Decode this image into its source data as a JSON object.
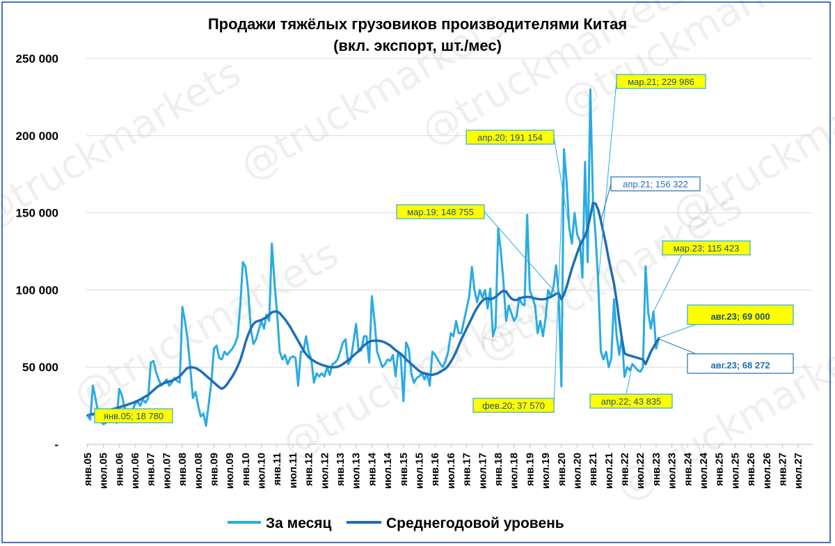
{
  "chart_data": {
    "type": "line",
    "title_line1": "Продажи тяжёлых грузовиков производителями Китая",
    "title_line2": "(вкл. экспорт, шт./мес)",
    "watermark": "@truckmarkets",
    "ylim": [
      0,
      250000
    ],
    "y_ticks": [
      {
        "value": 0,
        "label": "-"
      },
      {
        "value": 50000,
        "label": "50 000"
      },
      {
        "value": 100000,
        "label": "100 000"
      },
      {
        "value": 150000,
        "label": "150 000"
      },
      {
        "value": 200000,
        "label": "200 000"
      },
      {
        "value": 250000,
        "label": "250 000"
      }
    ],
    "x_start": "2005-01",
    "x_end": "2027-12",
    "x_tick_labels": [
      "янв.05",
      "июл.05",
      "янв.06",
      "июл.06",
      "янв.07",
      "июл.07",
      "янв.08",
      "июл.08",
      "янв.09",
      "июл.09",
      "янв.10",
      "июл.10",
      "янв.11",
      "июл.11",
      "янв.12",
      "июл.12",
      "янв.13",
      "июл.13",
      "янв.14",
      "июл.14",
      "янв.15",
      "июл.15",
      "янв.16",
      "июл.16",
      "янв.17",
      "июл.17",
      "янв.18",
      "июл.18",
      "янв.19",
      "июл.19",
      "янв.20",
      "июл.20",
      "янв.21",
      "июл.21",
      "янв.22",
      "июл.22",
      "янв.23",
      "июл.23",
      "янв.24",
      "июл.24",
      "янв.25",
      "июл.25",
      "янв.26",
      "июл.26",
      "янв.27",
      "июл.27"
    ],
    "legend": [
      "За месяц",
      "Среднегодовой уровень"
    ],
    "colors": {
      "monthly": "#29abe2",
      "average": "#1f6eb5",
      "label_fill": "#ffff00",
      "label_text_blue": "#1f6eb5"
    },
    "series": [
      {
        "name": "За месяц",
        "color": "#29abe2",
        "values": [
          18780,
          16000,
          38000,
          30000,
          20000,
          15000,
          13000,
          14000,
          16000,
          20000,
          18000,
          14000,
          36000,
          32000,
          24000,
          22000,
          20000,
          22000,
          26000,
          28000,
          25000,
          29000,
          27000,
          30000,
          53000,
          54000,
          47000,
          42000,
          38000,
          40000,
          42000,
          38000,
          40000,
          43000,
          41000,
          40000,
          89000,
          80000,
          68000,
          50000,
          30000,
          34000,
          25000,
          18000,
          20000,
          12000,
          26000,
          40000,
          62000,
          64000,
          56000,
          55000,
          60000,
          58000,
          60000,
          62000,
          65000,
          70000,
          90000,
          118000,
          115000,
          100000,
          75000,
          65000,
          68000,
          74000,
          80000,
          75000,
          84000,
          80000,
          130000,
          105000,
          85000,
          60000,
          55000,
          58000,
          52000,
          56000,
          57000,
          56000,
          38000,
          60000,
          60000,
          70000,
          60000,
          55000,
          40000,
          46000,
          44000,
          46000,
          44000,
          50000,
          45000,
          52000,
          53000,
          55000,
          60000,
          66000,
          68000,
          52000,
          55000,
          66000,
          78000,
          60000,
          61000,
          70000,
          70000,
          53000,
          96000,
          80000,
          60000,
          55000,
          50000,
          52000,
          55000,
          54000,
          58000,
          44000,
          60000,
          56000,
          28000,
          66000,
          62000,
          46000,
          40000,
          43000,
          44000,
          46000,
          42000,
          46000,
          38000,
          60000,
          58000,
          55000,
          52000,
          50000,
          54000,
          60000,
          72000,
          70000,
          80000,
          72000,
          72000,
          80000,
          88000,
          96000,
          115000,
          100000,
          92000,
          100000,
          95000,
          100000,
          88000,
          101000,
          70000,
          76000,
          140000,
          125000,
          105000,
          80000,
          90000,
          85000,
          80000,
          83000,
          95000,
          91000,
          90000,
          148755,
          100000,
          95000,
          90000,
          72000,
          80000,
          70000,
          82000,
          100000,
          96000,
          102000,
          116000,
          96000,
          37570,
          191154,
          170000,
          140000,
          130000,
          150000,
          136000,
          132000,
          108000,
          183000,
          118000,
          229986,
          158000,
          135000,
          105000,
          60000,
          55000,
          60000,
          50000,
          56000,
          94000,
          70000,
          58000,
          70000,
          43835,
          50000,
          48000,
          52000,
          50000,
          48000,
          47000,
          50000,
          115423,
          85000,
          75000,
          86000,
          62000,
          69000
        ]
      },
      {
        "name": "Среднегодовой уровень",
        "color": "#1f6eb5",
        "values": [
          18780,
          19200,
          19600,
          20000,
          20300,
          20600,
          21000,
          21500,
          22000,
          22500,
          23000,
          23500,
          24000,
          24500,
          25000,
          25600,
          26200,
          26800,
          27500,
          28200,
          29000,
          30000,
          31000,
          32000,
          33500,
          35000,
          36500,
          37800,
          38800,
          39600,
          40200,
          40700,
          41200,
          42000,
          43000,
          44000,
          46000,
          48000,
          49500,
          50000,
          49800,
          49500,
          48500,
          47500,
          46000,
          44500,
          43000,
          41500,
          40000,
          38500,
          37000,
          36000,
          37000,
          39000,
          41500,
          44000,
          47000,
          50500,
          54500,
          60000,
          66000,
          71000,
          75000,
          78000,
          79500,
          80000,
          80500,
          81500,
          82500,
          84000,
          85500,
          86000,
          86000,
          85000,
          83000,
          81000,
          78500,
          76000,
          73000,
          70000,
          67000,
          64000,
          61000,
          58500,
          56500,
          55000,
          54000,
          53000,
          52200,
          51500,
          51000,
          50500,
          50000,
          50000,
          50000,
          50200,
          51000,
          52000,
          53200,
          54500,
          56000,
          57500,
          59000,
          60500,
          62500,
          64000,
          65500,
          66500,
          67000,
          67200,
          67200,
          67000,
          66600,
          66000,
          65000,
          64000,
          62500,
          61000,
          59800,
          58600,
          57000,
          55000,
          53500,
          52000,
          50500,
          49000,
          47500,
          46500,
          46000,
          45500,
          45200,
          45000,
          45500,
          46000,
          47000,
          48000,
          49000,
          51000,
          53500,
          56500,
          60000,
          64000,
          68000,
          71500,
          75000,
          78500,
          82000,
          85500,
          88500,
          91000,
          93000,
          94500,
          94500,
          94000,
          94500,
          95500,
          97000,
          98500,
          99500,
          99000,
          96500,
          94500,
          93500,
          93500,
          94500,
          95000,
          95500,
          95500,
          95500,
          95000,
          94500,
          94200,
          94000,
          94000,
          94200,
          94800,
          95500,
          96500,
          97500,
          98000,
          94000,
          97000,
          102000,
          108000,
          114000,
          119000,
          124000,
          128500,
          132000,
          135000,
          140000,
          148000,
          156322,
          156000,
          152000,
          145000,
          137000,
          129000,
          120000,
          112000,
          104000,
          93000,
          80000,
          68000,
          59000,
          58000,
          57500,
          57000,
          56500,
          56000,
          55500,
          55000,
          52000,
          56000,
          60000,
          63000,
          66000,
          68272
        ]
      }
    ],
    "annotations": [
      {
        "text": "янв.05;  18 780",
        "style": "yellow",
        "point": "2005-01"
      },
      {
        "text": "фев.20; 37 570",
        "style": "yellow",
        "point": "2020-02"
      },
      {
        "text": "апр.20;  191 154",
        "style": "yellow",
        "point": "2020-04"
      },
      {
        "text": "мар.19; 148 755",
        "style": "yellow",
        "point": "2019-12"
      },
      {
        "text": "мар.21;  229 986",
        "style": "yellow",
        "point": "2021-03"
      },
      {
        "text": "апр.21;  156 322",
        "style": "blue",
        "point": "2021-04"
      },
      {
        "text": "апр.22;  43 835",
        "style": "yellow",
        "point": "2022-04"
      },
      {
        "text": "мар.23; 115 423",
        "style": "yellow",
        "point": "2022-12"
      },
      {
        "text": "авг.23;  69 000",
        "style": "yellow-big",
        "point": "2023-08"
      },
      {
        "text": "авг.23;  68 272",
        "style": "blue-big",
        "point": "2023-08"
      }
    ],
    "legend_position": "bottom",
    "grid": "horizontal"
  }
}
